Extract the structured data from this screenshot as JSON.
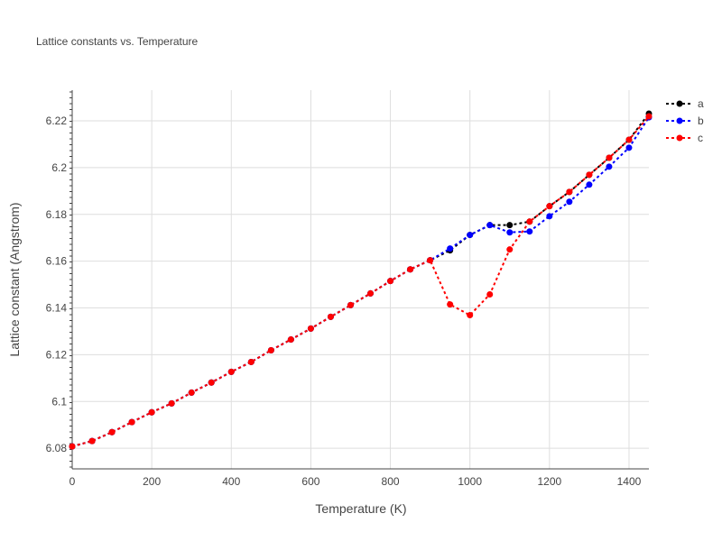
{
  "chart_data": {
    "type": "line",
    "title": "Lattice constants vs. Temperature",
    "xlabel": "Temperature (K)",
    "ylabel": "Lattice constant (Angstrom)",
    "xlim": [
      0,
      1450
    ],
    "ylim": [
      6.0712,
      6.2331
    ],
    "xticks": [
      0,
      200,
      400,
      600,
      800,
      1000,
      1200,
      1400
    ],
    "xtick_labels": [
      "0",
      "200",
      "400",
      "600",
      "800",
      "1000",
      "1200",
      "1400"
    ],
    "yticks": [
      6.08,
      6.1,
      6.12,
      6.14,
      6.16,
      6.18,
      6.2,
      6.22
    ],
    "ytick_labels": [
      "6.08",
      "6.1",
      "6.12",
      "6.14",
      "6.16",
      "6.18",
      "6.2",
      "6.22"
    ],
    "grid": true,
    "legend_position": "top-right",
    "x": [
      0,
      50,
      100,
      150,
      200,
      250,
      300,
      350,
      400,
      450,
      500,
      550,
      600,
      650,
      700,
      750,
      800,
      850,
      900,
      950,
      1000,
      1050,
      1100,
      1150,
      1200,
      1250,
      1300,
      1350,
      1400,
      1450
    ],
    "series": [
      {
        "name": "a",
        "color": "#000000",
        "values": [
          6.0808,
          6.0831,
          6.0869,
          6.0912,
          6.0954,
          6.0992,
          6.1038,
          6.1081,
          6.1127,
          6.1169,
          6.1219,
          6.1265,
          6.1312,
          6.1362,
          6.1412,
          6.1462,
          6.1515,
          6.1565,
          6.1604,
          6.1646,
          6.1712,
          6.1754,
          6.1754,
          6.1769,
          6.1835,
          6.1896,
          6.1969,
          6.2042,
          6.2119,
          6.2231
        ]
      },
      {
        "name": "b",
        "color": "#0000ff",
        "values": [
          6.0808,
          6.0831,
          6.0869,
          6.0912,
          6.0954,
          6.0992,
          6.1038,
          6.1081,
          6.1127,
          6.1169,
          6.1219,
          6.1265,
          6.1312,
          6.1362,
          6.1412,
          6.1462,
          6.1515,
          6.1565,
          6.1604,
          6.1654,
          6.1712,
          6.1754,
          6.1723,
          6.1727,
          6.1792,
          6.1854,
          6.1927,
          6.2004,
          6.2085,
          6.2215
        ]
      },
      {
        "name": "c",
        "color": "#ff0000",
        "values": [
          6.0808,
          6.0831,
          6.0869,
          6.0912,
          6.0954,
          6.0992,
          6.1038,
          6.1081,
          6.1127,
          6.1169,
          6.1219,
          6.1265,
          6.1312,
          6.1362,
          6.1412,
          6.1462,
          6.1515,
          6.1565,
          6.1604,
          6.1415,
          6.1369,
          6.1458,
          6.165,
          6.1769,
          6.1835,
          6.1896,
          6.1969,
          6.2042,
          6.2119,
          6.2219
        ]
      }
    ]
  }
}
